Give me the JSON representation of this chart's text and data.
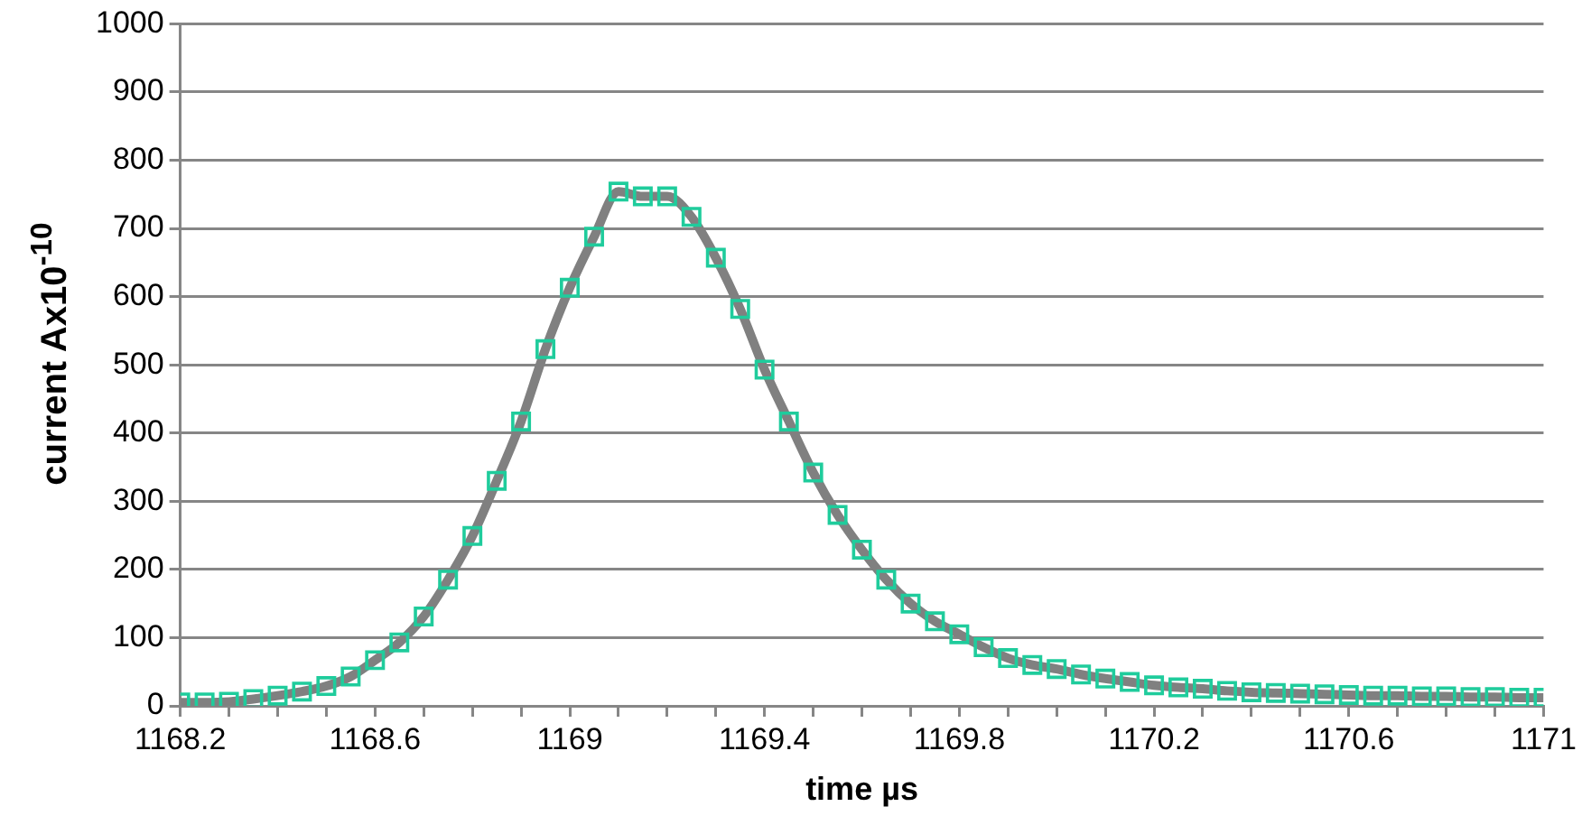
{
  "chart_data": {
    "type": "line",
    "xlabel": "time µs",
    "ylabel": "current Ax10$^{-10}$",
    "x": [
      1168.2,
      1168.25,
      1168.3,
      1168.35,
      1168.4,
      1168.45,
      1168.5,
      1168.55,
      1168.6,
      1168.65,
      1168.7,
      1168.75,
      1168.8,
      1168.85,
      1168.9,
      1168.95,
      1169,
      1169.05,
      1169.1,
      1169.15,
      1169.2,
      1169.25,
      1169.3,
      1169.35,
      1169.4,
      1169.45,
      1169.5,
      1169.55,
      1169.6,
      1169.65,
      1169.7,
      1169.75,
      1169.8,
      1169.85,
      1169.9,
      1169.95,
      1170,
      1170.05,
      1170.1,
      1170.15,
      1170.2,
      1170.25,
      1170.3,
      1170.35,
      1170.4,
      1170.45,
      1170.5,
      1170.55,
      1170.6,
      1170.65,
      1170.7,
      1170.75,
      1170.8,
      1170.85,
      1170.9,
      1170.95,
      1171
    ],
    "series": [
      {
        "color": "#808080",
        "marker": "none",
        "line_style": "solid",
        "values": [
          5,
          5,
          6,
          10,
          15,
          21,
          29,
          43,
          67,
          93,
          131,
          185,
          249,
          330,
          417,
          523,
          613,
          688,
          754,
          747,
          747,
          717,
          657,
          582,
          493,
          417,
          342,
          280,
          229,
          185,
          150,
          124,
          105,
          86,
          70,
          60,
          54,
          46,
          40,
          35,
          30,
          27,
          25,
          22,
          20,
          19,
          18,
          17,
          16,
          15,
          15,
          14,
          14,
          13,
          13,
          12,
          12
        ]
      },
      {
        "type": "scatter",
        "color": "#1fcc9c",
        "marker": "square",
        "values": [
          5,
          5,
          6,
          10,
          15,
          21,
          29,
          43,
          67,
          93,
          131,
          185,
          249,
          330,
          417,
          523,
          613,
          688,
          754,
          747,
          747,
          717,
          657,
          582,
          493,
          417,
          342,
          280,
          229,
          185,
          150,
          124,
          105,
          86,
          70,
          60,
          54,
          46,
          40,
          35,
          30,
          27,
          25,
          22,
          20,
          19,
          18,
          17,
          16,
          15,
          15,
          14,
          14,
          13,
          13,
          12,
          12
        ]
      }
    ],
    "xlim": [
      1168.2,
      1171
    ],
    "xticks": [
      1168.2,
      {
        "value": 1168.3,
        "label": null
      },
      {
        "value": 1168.4,
        "label": null
      },
      {
        "value": 1168.5,
        "label": null
      },
      1168.6,
      {
        "value": 1168.7,
        "label": null
      },
      {
        "value": 1168.8,
        "label": null
      },
      {
        "value": 1168.9,
        "label": null
      },
      1169,
      {
        "value": 1169.1,
        "label": null
      },
      {
        "value": 1169.2,
        "label": null
      },
      {
        "value": 1169.3,
        "label": null
      },
      1169.4,
      {
        "value": 1169.5,
        "label": null
      },
      {
        "value": 1169.6,
        "label": null
      },
      {
        "value": 1169.7,
        "label": null
      },
      1169.8,
      {
        "value": 1169.9,
        "label": null
      },
      {
        "value": 1170,
        "label": null
      },
      {
        "value": 1170.1,
        "label": null
      },
      1170.2,
      {
        "value": 1170.3,
        "label": null
      },
      {
        "value": 1170.4,
        "label": null
      },
      {
        "value": 1170.5,
        "label": null
      },
      1170.6,
      {
        "value": 1170.7,
        "label": null
      },
      {
        "value": 1170.8,
        "label": null
      },
      {
        "value": 1170.9,
        "label": null
      },
      1171
    ],
    "ylim": [
      0,
      1000
    ],
    "yticks": [
      0,
      100,
      200,
      300,
      400,
      500,
      600,
      700,
      800,
      900,
      1000
    ],
    "grid": "y",
    "legend": false
  }
}
